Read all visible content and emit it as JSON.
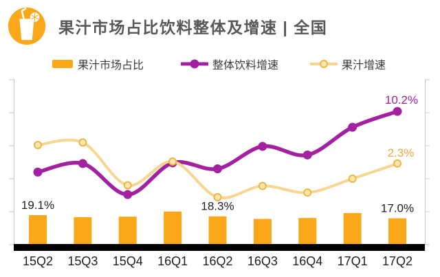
{
  "header": {
    "title": "果汁市场占比饮料整体及增速 | 全国",
    "icon": "juice-glass-icon"
  },
  "legend": {
    "items": [
      {
        "label": "果汁市场占比",
        "marker": "bar-swatch"
      },
      {
        "label": "整体饮料增速",
        "marker": "line-dot"
      },
      {
        "label": "果汁增速",
        "marker": "line-ring"
      }
    ]
  },
  "colors": {
    "orange": "#FAA81A",
    "purple": "#A321A0",
    "yellow_line": "#F8D68F",
    "yellow_marker_stroke": "#EFB53D",
    "yellow_marker_fill": "#FBE7B6",
    "gold_label": "#F1A83C",
    "label_dark": "#1F1F1F",
    "x_label": "#1E1E1E",
    "axis_gray": "#C4C4C4",
    "black_band": "#000000"
  },
  "chart_data": {
    "type": "combo",
    "title": "果汁市场占比饮料整体及增速 | 全国",
    "categories": [
      "15Q2",
      "15Q3",
      "15Q4",
      "16Q1",
      "16Q2",
      "16Q3",
      "16Q4",
      "17Q1",
      "17Q2"
    ],
    "series": [
      {
        "name": "果汁市场占比",
        "type": "bar",
        "unit": "%",
        "values": [
          19.1,
          17.7,
          18.1,
          21.5,
          18.3,
          16.6,
          17.2,
          20.5,
          17.0
        ],
        "point_labels": [
          "19.1%",
          "",
          "",
          "",
          "18.3%",
          "",
          "",
          "",
          "17.0%"
        ]
      },
      {
        "name": "整体饮料增速",
        "type": "line",
        "unit": "%",
        "values": [
          1.0,
          2.3,
          -2.4,
          2.4,
          1.5,
          4.9,
          3.6,
          7.8,
          10.2
        ],
        "end_label": "10.2%"
      },
      {
        "name": "果汁增速",
        "type": "line",
        "unit": "%",
        "values": [
          5.1,
          5.5,
          -1.0,
          2.6,
          -2.8,
          -1.1,
          -2.1,
          0.0,
          2.3
        ],
        "end_label": "2.3%"
      }
    ],
    "line_axis": {
      "min": -10,
      "max": 15,
      "step": 5,
      "labels_visible": false
    },
    "bar_axis": {
      "labels_visible": false
    },
    "grid": false,
    "legend_position": "top"
  }
}
